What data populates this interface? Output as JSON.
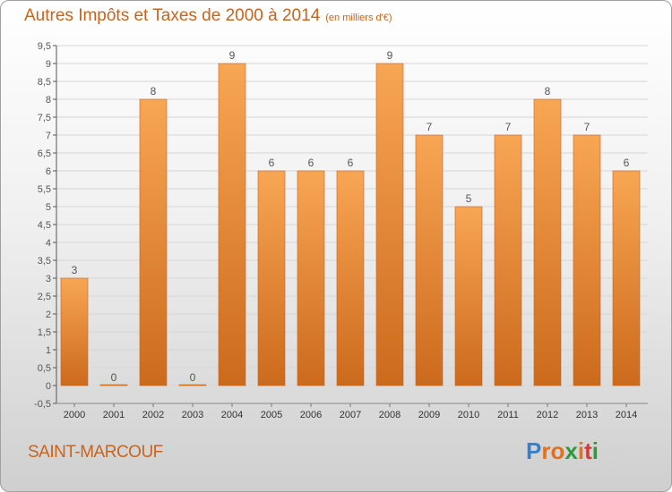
{
  "header": {
    "title": "Autres Impôts et Taxes de 2000 à 2014",
    "unit": "(en milliers d'€)"
  },
  "footer": {
    "commune": "SAINT-MARCOUF",
    "logo": "Proxiti"
  },
  "colors": {
    "title": "#c8641c",
    "bar_top": "#f8a654",
    "bar_bottom": "#cc6a1c",
    "logo_letters": [
      "#3a7fc8",
      "#e3701c",
      "#e3701c",
      "#2f9a3c",
      "#e3701c",
      "#d23c3c",
      "#2f9a3c"
    ]
  },
  "chart_data": {
    "type": "bar",
    "title": "Autres Impôts et Taxes de 2000 à 2014",
    "subtitle": "(en milliers d'€)",
    "categories": [
      "2000",
      "2001",
      "2002",
      "2003",
      "2004",
      "2005",
      "2006",
      "2007",
      "2008",
      "2009",
      "2010",
      "2011",
      "2012",
      "2013",
      "2014"
    ],
    "values": [
      3,
      0,
      8,
      0,
      9,
      6,
      6,
      6,
      9,
      7,
      5,
      7,
      8,
      7,
      6
    ],
    "ylim": [
      -0.5,
      9.5
    ],
    "yticks": [
      "-0,5",
      "0",
      "0,5",
      "1",
      "1,5",
      "2",
      "2,5",
      "3",
      "3,5",
      "4",
      "4,5",
      "5",
      "5,5",
      "6",
      "6,5",
      "7",
      "7,5",
      "8",
      "8,5",
      "9",
      "9,5"
    ],
    "grid": true,
    "legend": "none"
  }
}
